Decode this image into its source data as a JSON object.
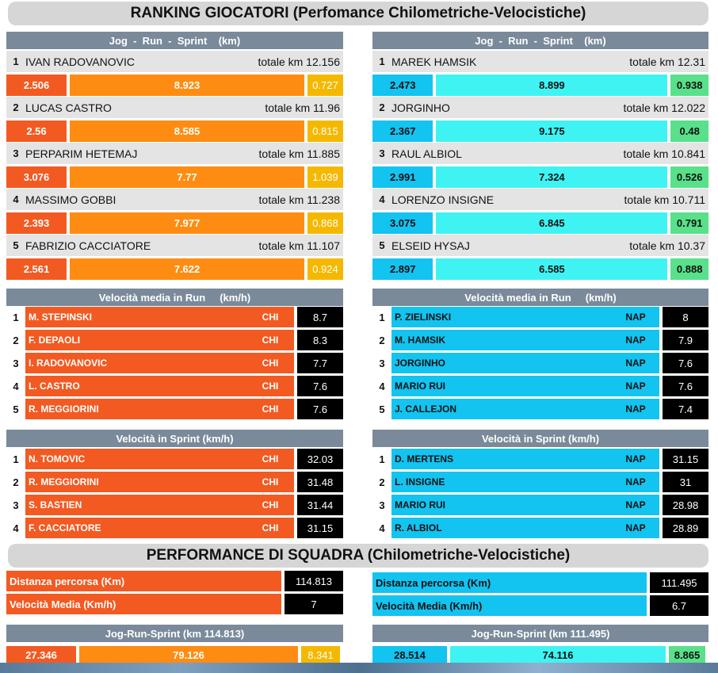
{
  "title": "RANKING GIOCATORI (Perfomance Chilometriche-Velocistiche)",
  "team_title": "PERFORMANCE DI SQUADRA (Chilometriche-Velocistiche)",
  "colors": {
    "left_primary": "#f25a22",
    "left_secondary": "#ff8c12",
    "left_tertiary": "#f5b800",
    "right_primary": "#13c3f0",
    "right_secondary": "#3ff3f3",
    "right_tertiary": "#59e08a"
  },
  "left": {
    "jrs_header": "Jog  -  Run  -  Sprint    (km)",
    "players": [
      {
        "rank": "1",
        "name": "IVAN RADOVANOVIC",
        "total": "totale km 12.156",
        "jog": "2.506",
        "run": "8.923",
        "sprint": "0.727"
      },
      {
        "rank": "2",
        "name": "LUCAS CASTRO",
        "total": "totale km 11.96",
        "jog": "2.56",
        "run": "8.585",
        "sprint": "0.815"
      },
      {
        "rank": "3",
        "name": "PERPARIM HETEMAJ",
        "total": "totale km 11.885",
        "jog": "3.076",
        "run": "7.77",
        "sprint": "1.039"
      },
      {
        "rank": "4",
        "name": "MASSIMO GOBBI",
        "total": "totale km 11.238",
        "jog": "2.393",
        "run": "7.977",
        "sprint": "0.868"
      },
      {
        "rank": "5",
        "name": "FABRIZIO CACCIATORE",
        "total": "totale km 11.107",
        "jog": "2.561",
        "run": "7.622",
        "sprint": "0.924"
      }
    ],
    "run_header": "Velocità media in Run     (km/h)",
    "run_speed": [
      {
        "rank": "1",
        "name": "M. STEPINSKI",
        "team": "CHI",
        "value": "8.7"
      },
      {
        "rank": "2",
        "name": "F. DEPAOLI",
        "team": "CHI",
        "value": "8.3"
      },
      {
        "rank": "3",
        "name": "I. RADOVANOVIC",
        "team": "CHI",
        "value": "7.7"
      },
      {
        "rank": "4",
        "name": "L. CASTRO",
        "team": "CHI",
        "value": "7.6"
      },
      {
        "rank": "5",
        "name": "R. MEGGIORINI",
        "team": "CHI",
        "value": "7.6"
      }
    ],
    "sprint_header": "Velocità in Sprint (km/h)",
    "sprint_speed": [
      {
        "rank": "1",
        "name": "N. TOMOVIC",
        "team": "CHI",
        "value": "32.03"
      },
      {
        "rank": "2",
        "name": "R. MEGGIORINI",
        "team": "CHI",
        "value": "31.48"
      },
      {
        "rank": "3",
        "name": "S. BASTIEN",
        "team": "CHI",
        "value": "31.44"
      },
      {
        "rank": "4",
        "name": "F. CACCIATORE",
        "team": "CHI",
        "value": "31.15"
      }
    ],
    "team": {
      "distance_label": "Distanza percorsa (Km)",
      "distance": "114.813",
      "speed_label": "Velocità Media (Km/h)",
      "speed": "7",
      "jrs_header": "Jog-Run-Sprint (km 114.813)",
      "jog": "27.346",
      "run": "79.126",
      "sprint": "8.341"
    }
  },
  "right": {
    "jrs_header": "Jog  -  Run  -  Sprint    (km)",
    "players": [
      {
        "rank": "1",
        "name": "MAREK HAMSIK",
        "total": "totale km 12.31",
        "jog": "2.473",
        "run": "8.899",
        "sprint": "0.938"
      },
      {
        "rank": "2",
        "name": " JORGINHO",
        "total": "totale km 12.022",
        "jog": "2.367",
        "run": "9.175",
        "sprint": "0.48"
      },
      {
        "rank": "3",
        "name": "RAUL ALBIOL",
        "total": "totale km 10.841",
        "jog": "2.991",
        "run": "7.324",
        "sprint": "0.526"
      },
      {
        "rank": "4",
        "name": "LORENZO INSIGNE",
        "total": "totale km 10.711",
        "jog": "3.075",
        "run": "6.845",
        "sprint": "0.791"
      },
      {
        "rank": "5",
        "name": "ELSEID HYSAJ",
        "total": "totale km 10.37",
        "jog": "2.897",
        "run": "6.585",
        "sprint": "0.888"
      }
    ],
    "run_header": "Velocità media in Run     (km/h)",
    "run_speed": [
      {
        "rank": "1",
        "name": "P. ZIELINSKI",
        "team": "NAP",
        "value": "8"
      },
      {
        "rank": "2",
        "name": "M. HAMSIK",
        "team": "NAP",
        "value": "7.9"
      },
      {
        "rank": "3",
        "name": "JORGINHO",
        "team": "NAP",
        "value": "7.6"
      },
      {
        "rank": "4",
        "name": "MARIO RUI",
        "team": "NAP",
        "value": "7.6"
      },
      {
        "rank": "5",
        "name": "J. CALLEJON",
        "team": "NAP",
        "value": "7.4"
      }
    ],
    "sprint_header": "Velocità in Sprint (km/h)",
    "sprint_speed": [
      {
        "rank": "1",
        "name": "D. MERTENS",
        "team": "NAP",
        "value": "31.15"
      },
      {
        "rank": "2",
        "name": "L. INSIGNE",
        "team": "NAP",
        "value": "31"
      },
      {
        "rank": "3",
        "name": "MARIO RUI",
        "team": "NAP",
        "value": "28.98"
      },
      {
        "rank": "4",
        "name": "R. ALBIOL",
        "team": "NAP",
        "value": "28.89"
      }
    ],
    "team": {
      "distance_label": "Distanza percorsa (Km)",
      "distance": "111.495",
      "speed_label": "Velocità Media (Km/h)",
      "speed": "6.7",
      "jrs_header": "Jog-Run-Sprint (km 111.495)",
      "jog": "28.514",
      "run": "74.116",
      "sprint": "8.865"
    }
  }
}
